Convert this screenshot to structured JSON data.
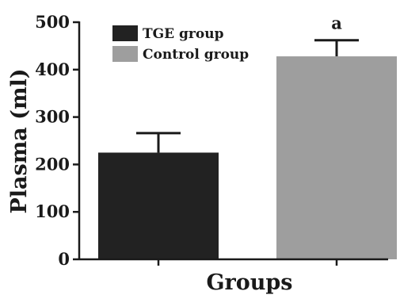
{
  "chart_data": {
    "type": "bar",
    "categories": [
      "TGE group",
      "Control group"
    ],
    "values": [
      225,
      428
    ],
    "error_upper": [
      266,
      462
    ],
    "colors": [
      "#222222",
      "#9e9e9e"
    ],
    "xlabel": "Groups",
    "ylabel": "Plasma (ml)",
    "ylim": [
      0,
      500
    ],
    "yticks": [
      "0",
      "100",
      "200",
      "300",
      "400",
      "500"
    ],
    "legend": {
      "position": "top-left",
      "items": [
        "TGE group",
        "Control group"
      ]
    },
    "annotations": [
      {
        "category": "Control group",
        "text": "a"
      }
    ],
    "grid": false
  }
}
